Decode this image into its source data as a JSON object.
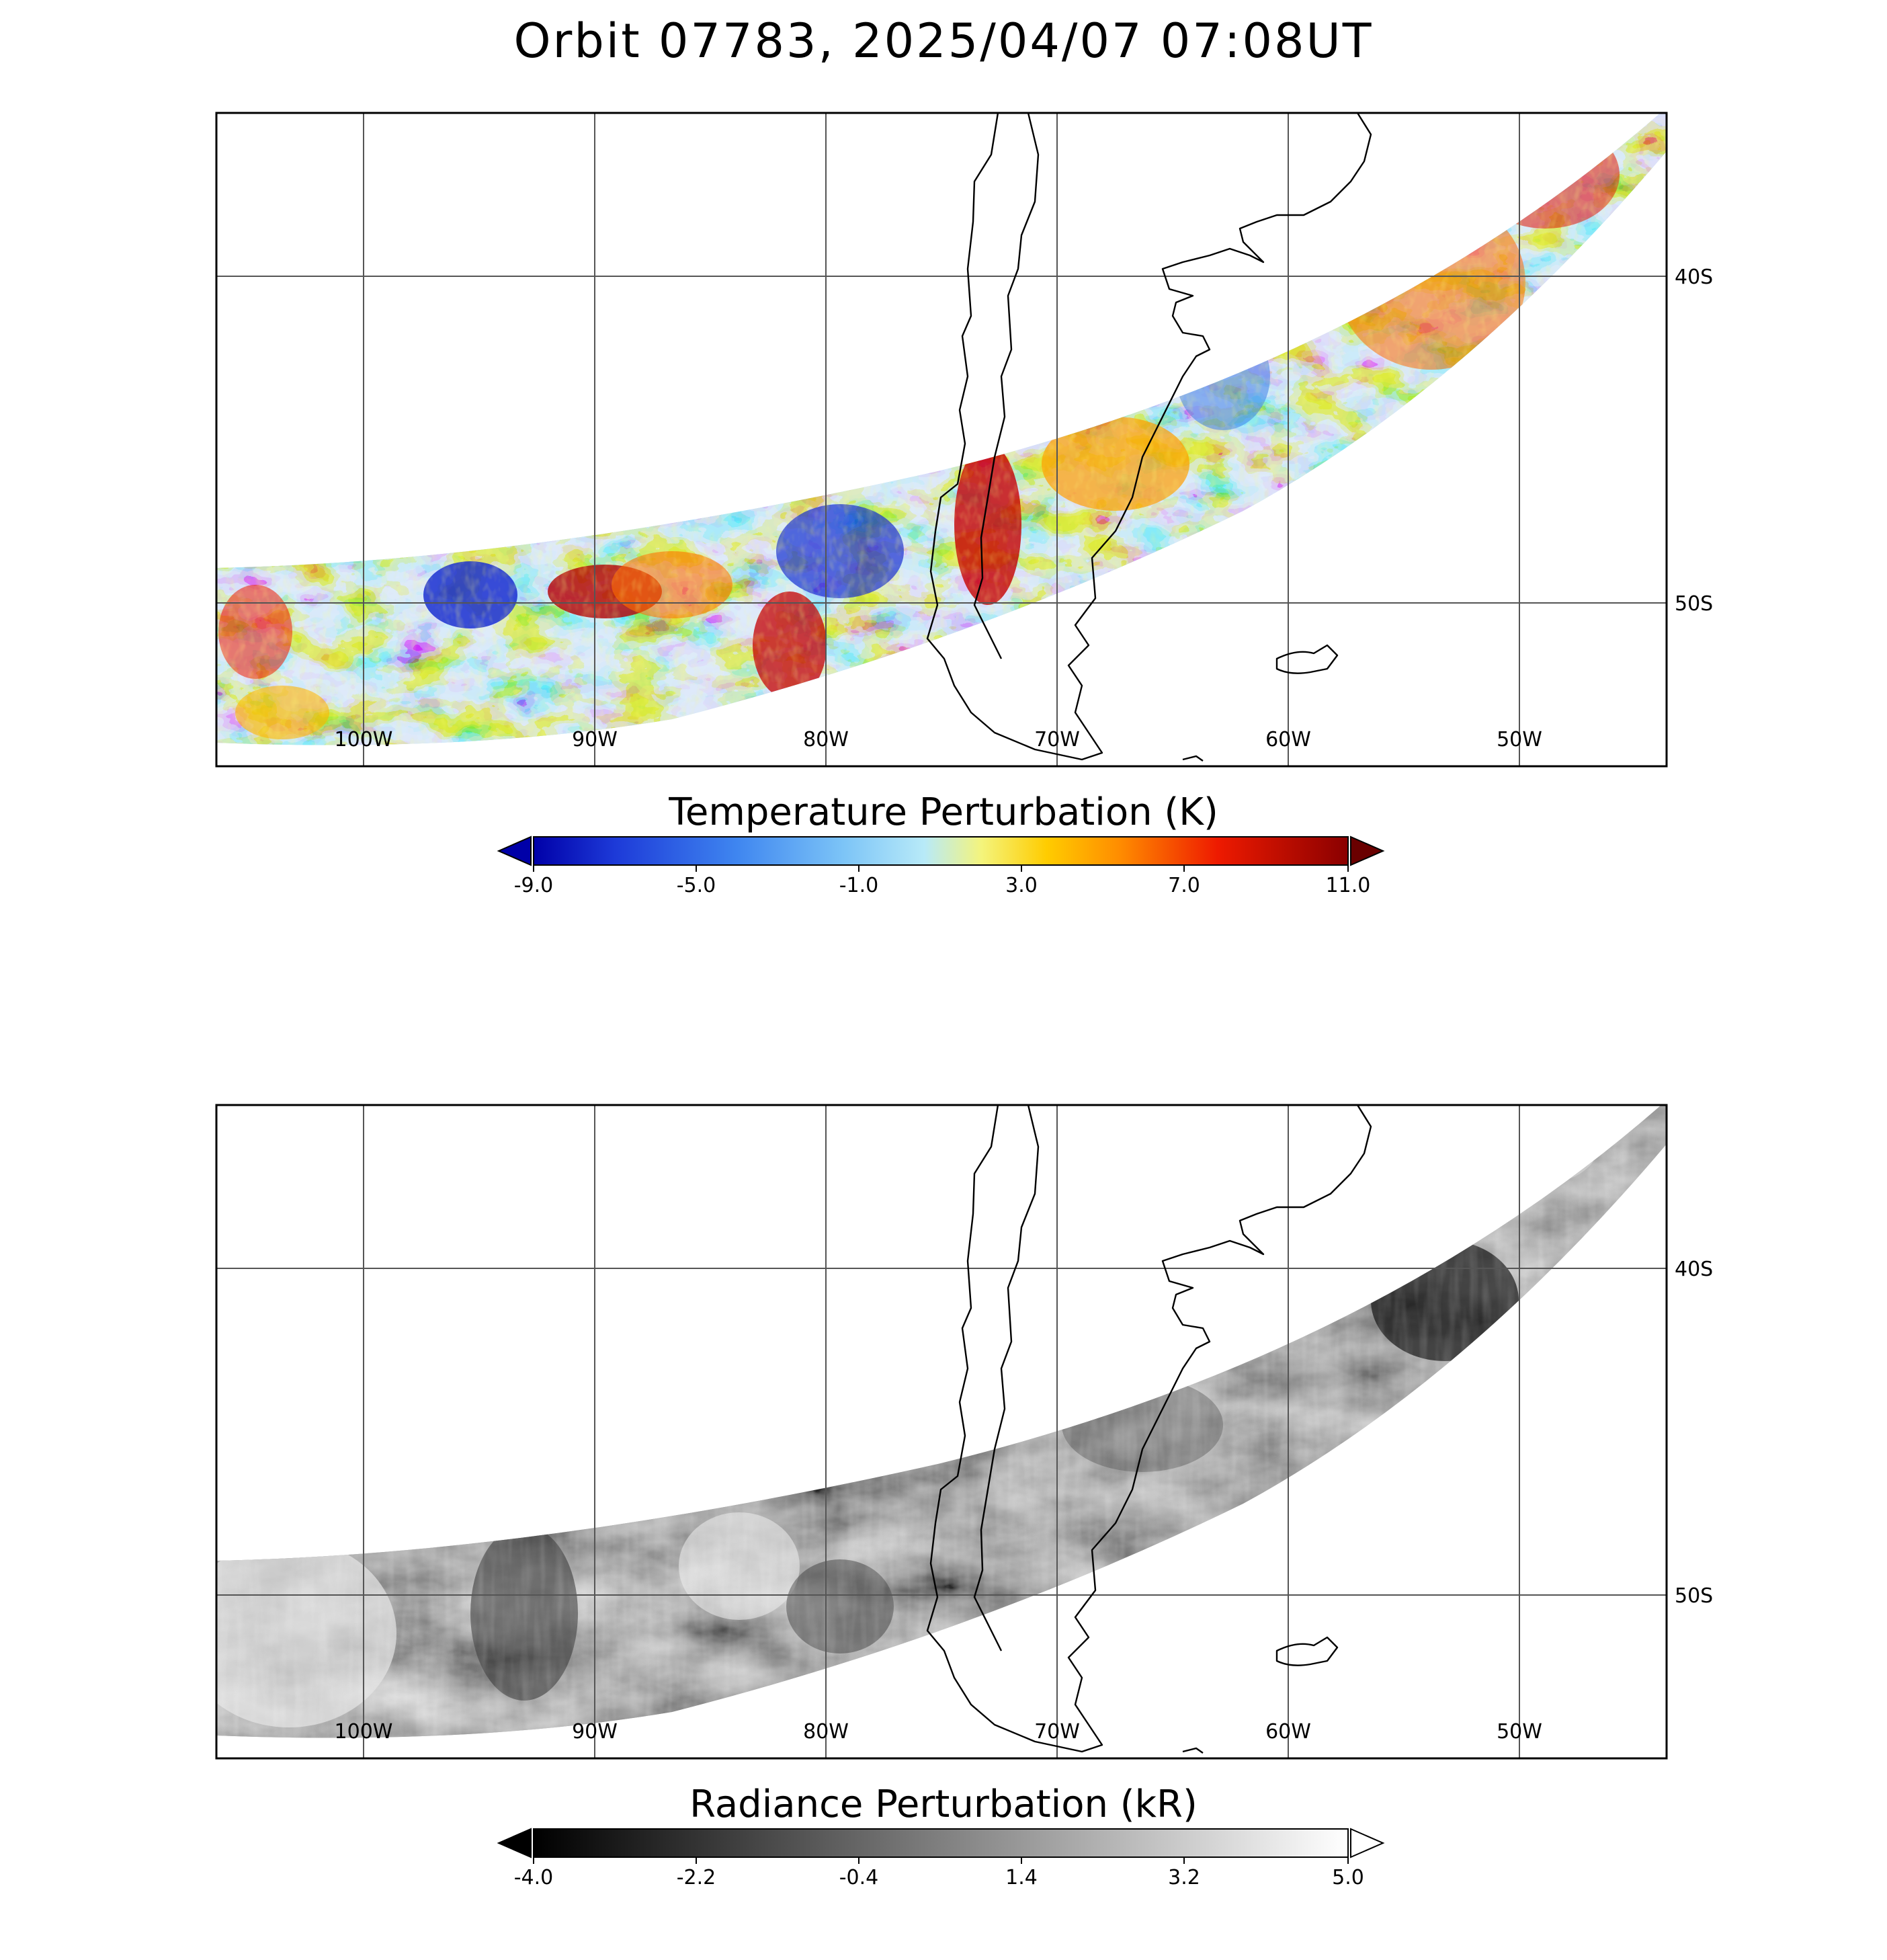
{
  "title": "Orbit 07783, 2025/04/07 07:08UT",
  "map": {
    "longitude_labels": [
      "100W",
      "90W",
      "80W",
      "70W",
      "60W",
      "50W"
    ],
    "latitude_labels": [
      "40S",
      "50S"
    ]
  },
  "panels": [
    {
      "id": "temperature",
      "colorbar_title": "Temperature Perturbation (K)",
      "colorbar_ticks": [
        "-9.0",
        "-5.0",
        "-1.0",
        "3.0",
        "7.0",
        "11.0"
      ],
      "colorbar_range": [
        -9.0,
        11.0
      ],
      "colormap": [
        "#0000a8",
        "#1d3ad8",
        "#3f86f0",
        "#7cc4f7",
        "#b8e8f8",
        "#f4f47c",
        "#ffcc00",
        "#ff8c00",
        "#ee1a00",
        "#a00000",
        "#6a0000"
      ]
    },
    {
      "id": "radiance",
      "colorbar_title": "Radiance Perturbation (kR)",
      "colorbar_ticks": [
        "-4.0",
        "-2.2",
        "-0.4",
        "1.4",
        "3.2",
        "5.0"
      ],
      "colorbar_range": [
        -4.0,
        5.0
      ],
      "colormap": [
        "#000000",
        "#ffffff"
      ]
    }
  ]
}
